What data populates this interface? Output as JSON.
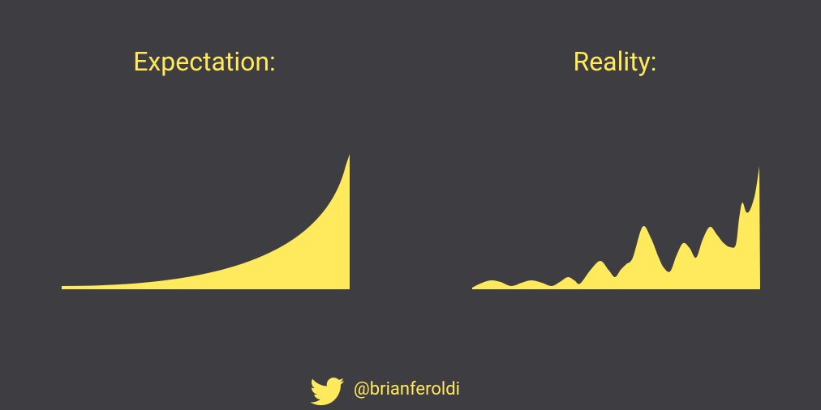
{
  "left": {
    "title": "Expectation:"
  },
  "right": {
    "title": "Reality:"
  },
  "footer": {
    "handle": "@brianferoldi"
  }
}
